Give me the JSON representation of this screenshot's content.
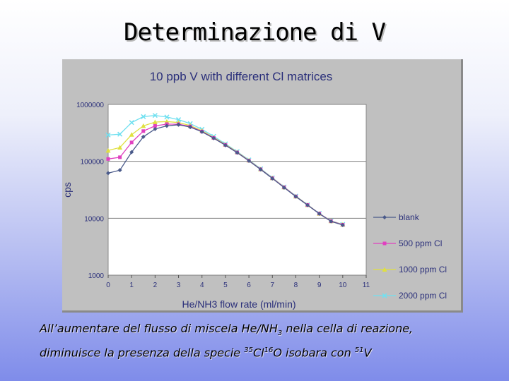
{
  "slide": {
    "title": "Determinazione di V",
    "caption_line1": "All’aumentare del flusso di miscela He/NH",
    "caption_sub": "3",
    "caption_line1_end": " nella cella di reazione,",
    "caption_line2_a": "diminuisce la presenza della specie ",
    "caption_sup1": "35",
    "caption_line2_b": "Cl",
    "caption_sup2": "16",
    "caption_line2_c": "O isobara con ",
    "caption_sup3": "51",
    "caption_line2_d": "V"
  },
  "chart_data": {
    "type": "line",
    "title": "10 ppb V with different Cl matrices",
    "xlabel": "He/NH3 flow rate (ml/min)",
    "ylabel": "cps",
    "xlim": [
      0,
      11
    ],
    "ylim": [
      1000,
      1000000
    ],
    "yscale": "log",
    "x_ticks": [
      "0",
      "1",
      "2",
      "3",
      "4",
      "5",
      "6",
      "7",
      "8",
      "9",
      "10",
      "11"
    ],
    "y_ticks": [
      {
        "value": 1000,
        "label": "1000"
      },
      {
        "value": 10000,
        "label": "10000"
      },
      {
        "value": 100000,
        "label": "100000"
      },
      {
        "value": 1000000,
        "label": "1000000"
      }
    ],
    "grid": "horizontal",
    "legend_position": "right",
    "x": [
      0,
      0.5,
      1,
      1.5,
      2,
      2.5,
      3,
      3.5,
      4,
      4.5,
      5,
      5.5,
      6,
      6.5,
      7,
      7.5,
      8,
      8.5,
      9,
      9.5,
      10
    ],
    "series": [
      {
        "name": "blank",
        "color": "#4a5a8a",
        "marker": "diamond",
        "values": [
          62000,
          70000,
          145000,
          270000,
          370000,
          420000,
          440000,
          400000,
          330000,
          255000,
          192000,
          142000,
          102000,
          72000,
          50000,
          34500,
          24000,
          17000,
          12000,
          8800,
          7600
        ]
      },
      {
        "name": "500 ppm Cl",
        "color": "#e040c0",
        "marker": "square",
        "values": [
          110000,
          118000,
          215000,
          340000,
          420000,
          450000,
          450000,
          410000,
          335000,
          258000,
          194000,
          143000,
          103000,
          72500,
          50500,
          35000,
          24200,
          17100,
          12100,
          8900,
          7700
        ]
      },
      {
        "name": "1000 ppm Cl",
        "color": "#e0e040",
        "marker": "triangle",
        "values": [
          155000,
          175000,
          295000,
          420000,
          490000,
          500000,
          480000,
          425000,
          345000,
          263000,
          197000,
          145000,
          104000,
          73000,
          51000,
          35200,
          24300,
          17200,
          12100,
          8950,
          7750
        ]
      },
      {
        "name": "2000 ppm Cl",
        "color": "#70e0f0",
        "marker": "x",
        "values": [
          290000,
          300000,
          480000,
          610000,
          640000,
          600000,
          540000,
          460000,
          365000,
          275000,
          203000,
          148000,
          106000,
          74000,
          51500,
          35500,
          24500,
          17300,
          12200,
          9000,
          7800
        ]
      }
    ]
  }
}
